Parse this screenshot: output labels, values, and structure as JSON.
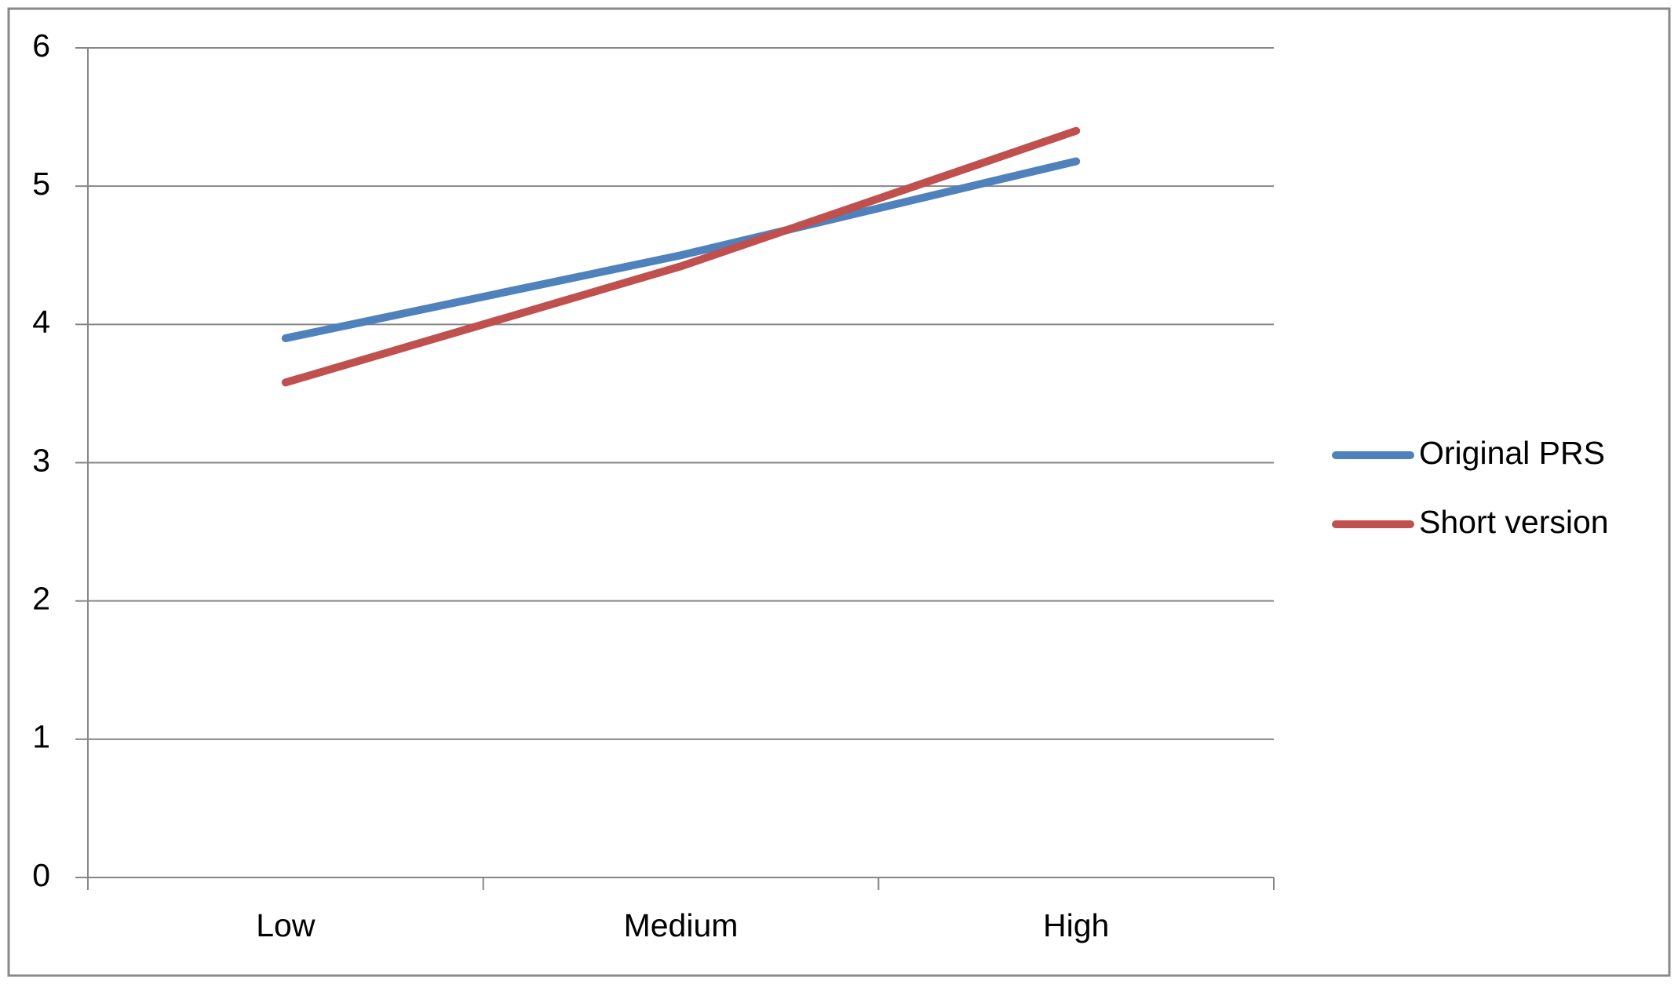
{
  "chart_data": {
    "type": "line",
    "categories": [
      "Low",
      "Medium",
      "High"
    ],
    "series": [
      {
        "name": "Original PRS",
        "color": "#4f81bd",
        "values": [
          3.9,
          4.5,
          5.18
        ]
      },
      {
        "name": "Short version",
        "color": "#c0504d",
        "values": [
          3.58,
          4.42,
          5.4
        ]
      }
    ],
    "ylim": [
      0,
      6
    ],
    "yticks": [
      0,
      1,
      2,
      3,
      4,
      5,
      6
    ],
    "grid": true,
    "legend": "right"
  }
}
